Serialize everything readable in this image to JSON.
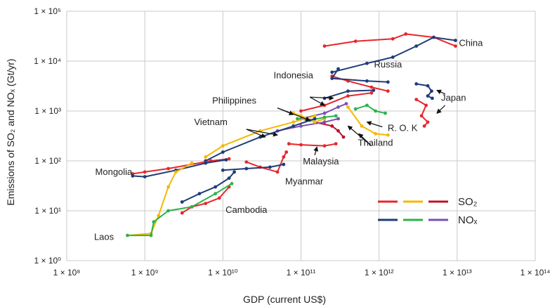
{
  "chart_data": {
    "type": "line",
    "xlabel": "GDP (current US$)",
    "ylabel": "Emissions of SO₂ and NOₓ (Gt/yr)",
    "xscale": "log",
    "yscale": "log",
    "xlim": [
      100000000,
      100000000000000
    ],
    "ylim": [
      1,
      100000
    ],
    "grid": true,
    "x_tick_labels": [
      "1 × 10⁸",
      "1 × 10⁹",
      "1 × 10¹⁰",
      "1 × 10¹¹",
      "1 × 10¹²",
      "1 × 10¹³",
      "1 × 10¹⁴"
    ],
    "y_tick_labels": [
      "1 × 10⁰",
      "1 × 10¹",
      "1 × 10²",
      "1 × 10³",
      "1 × 10⁴",
      "1 × 10⁵"
    ],
    "legend": {
      "placement": "bottom-right",
      "entries": [
        {
          "label": "SO₂",
          "colors": [
            "#e8262c",
            "#f5b800",
            "#c0122a"
          ]
        },
        {
          "label": "NOₓ",
          "colors": [
            "#1f3b78",
            "#2db34a",
            "#7d4fb5"
          ]
        }
      ]
    },
    "series": [
      {
        "country": "China",
        "pollutant": "SO2",
        "color": "#e8262c",
        "points": [
          [
            200000000000,
            20000
          ],
          [
            500000000000,
            25000
          ],
          [
            1500000000000,
            28000
          ],
          [
            2200000000000,
            35000
          ],
          [
            5000000000000,
            30000
          ],
          [
            9500000000000,
            20000
          ]
        ]
      },
      {
        "country": "China",
        "pollutant": "NOx",
        "color": "#1f3b78",
        "points": [
          [
            250000000000,
            6000
          ],
          [
            700000000000,
            9000
          ],
          [
            1500000000000,
            12000
          ],
          [
            3000000000000,
            20000
          ],
          [
            5000000000000,
            30000
          ],
          [
            9500000000000,
            26000
          ]
        ]
      },
      {
        "country": "Russia",
        "pollutant": "SO2",
        "color": "#e8262c",
        "points": [
          [
            250000000000,
            5000
          ],
          [
            400000000000,
            4000
          ],
          [
            800000000000,
            3000
          ],
          [
            1300000000000,
            2500
          ]
        ]
      },
      {
        "country": "Russia",
        "pollutant": "NOx",
        "color": "#1f3b78",
        "points": [
          [
            300000000000,
            7000
          ],
          [
            250000000000,
            4500
          ],
          [
            700000000000,
            4000
          ],
          [
            1300000000000,
            3800
          ]
        ]
      },
      {
        "country": "Japan",
        "pollutant": "SO2",
        "color": "#e8262c",
        "points": [
          [
            3000000000000,
            1700
          ],
          [
            4000000000000,
            1300
          ],
          [
            3500000000000,
            800
          ],
          [
            4200000000000,
            600
          ],
          [
            3800000000000,
            500
          ]
        ]
      },
      {
        "country": "Japan",
        "pollutant": "NOx",
        "color": "#1f3b78",
        "points": [
          [
            3000000000000,
            3500
          ],
          [
            4200000000000,
            3200
          ],
          [
            4700000000000,
            2500
          ],
          [
            4200000000000,
            2000
          ],
          [
            4800000000000,
            1800
          ]
        ]
      },
      {
        "country": "R. O. K",
        "pollutant": "SO2",
        "color": "#f5b800",
        "points": [
          [
            400000000000,
            1200
          ],
          [
            600000000000,
            500
          ],
          [
            900000000000,
            350
          ],
          [
            1300000000000,
            330
          ]
        ]
      },
      {
        "country": "R. O. K",
        "pollutant": "NOx",
        "color": "#2db34a",
        "points": [
          [
            500000000000,
            1100
          ],
          [
            700000000000,
            1300
          ],
          [
            900000000000,
            1000
          ],
          [
            1200000000000,
            900
          ]
        ]
      },
      {
        "country": "Indonesia",
        "pollutant": "SO2",
        "color": "#e8262c",
        "points": [
          [
            100000000000,
            1000
          ],
          [
            200000000000,
            1300
          ],
          [
            400000000000,
            2000
          ],
          [
            800000000000,
            2300
          ]
        ]
      },
      {
        "country": "Indonesia",
        "pollutant": "NOx",
        "color": "#1f3b78",
        "points": [
          [
            200000000000,
            1800
          ],
          [
            400000000000,
            2500
          ],
          [
            850000000000,
            2600
          ]
        ]
      },
      {
        "country": "Thailand",
        "pollutant": "SO2",
        "color": "#c0122a",
        "points": [
          [
            150000000000,
            600
          ],
          [
            250000000000,
            500
          ],
          [
            300000000000,
            400
          ],
          [
            350000000000,
            300
          ]
        ]
      },
      {
        "country": "Thailand",
        "pollutant": "NOx",
        "color": "#7d4fb5",
        "points": [
          [
            100000000000,
            700
          ],
          [
            200000000000,
            900
          ],
          [
            300000000000,
            1200
          ],
          [
            380000000000,
            1400
          ]
        ]
      },
      {
        "country": "Malaysia",
        "pollutant": "SO2",
        "color": "#e8262c",
        "points": [
          [
            70000000000,
            220
          ],
          [
            100000000000,
            210
          ],
          [
            200000000000,
            200
          ],
          [
            280000000000,
            220
          ]
        ]
      },
      {
        "country": "Malaysia",
        "pollutant": "NOx",
        "color": "#7d4fb5",
        "points": [
          [
            50000000000,
            400
          ],
          [
            100000000000,
            500
          ],
          [
            200000000000,
            600
          ],
          [
            300000000000,
            700
          ]
        ]
      },
      {
        "country": "Philippines",
        "pollutant": "SO2",
        "color": "#f5b800",
        "points": [
          [
            80000000000,
            900
          ],
          [
            100000000000,
            800
          ],
          [
            150000000000,
            600
          ],
          [
            200000000000,
            700
          ]
        ]
      },
      {
        "country": "Philippines",
        "pollutant": "NOx",
        "color": "#2db34a",
        "points": [
          [
            90000000000,
            700
          ],
          [
            130000000000,
            650
          ],
          [
            200000000000,
            750
          ],
          [
            280000000000,
            800
          ]
        ]
      },
      {
        "country": "Vietnam",
        "pollutant": "SO2",
        "color": "#f5b800",
        "points": [
          [
            6000000000,
            120
          ],
          [
            10000000000,
            200
          ],
          [
            30000000000,
            400
          ],
          [
            80000000000,
            600
          ],
          [
            150000000000,
            800
          ]
        ]
      },
      {
        "country": "Vietnam",
        "pollutant": "NOx",
        "color": "#1f3b78",
        "points": [
          [
            6000000000,
            100
          ],
          [
            10000000000,
            150
          ],
          [
            30000000000,
            300
          ],
          [
            80000000000,
            500
          ],
          [
            150000000000,
            700
          ]
        ]
      },
      {
        "country": "Mongolia",
        "pollutant": "SO2",
        "color": "#e8262c",
        "points": [
          [
            700000000,
            55
          ],
          [
            1000000000,
            60
          ],
          [
            2000000000,
            70
          ],
          [
            7000000000,
            100
          ],
          [
            12000000000,
            110
          ]
        ]
      },
      {
        "country": "Mongolia",
        "pollutant": "NOx",
        "color": "#1f3b78",
        "points": [
          [
            700000000,
            50
          ],
          [
            1000000000,
            48
          ],
          [
            2500000000,
            65
          ],
          [
            6000000000,
            90
          ],
          [
            11000000000,
            105
          ]
        ]
      },
      {
        "country": "Myanmar",
        "pollutant": "SO2",
        "color": "#e8262c",
        "points": [
          [
            20000000000,
            95
          ],
          [
            30000000000,
            75
          ],
          [
            50000000000,
            60
          ],
          [
            60000000000,
            120
          ],
          [
            65000000000,
            150
          ]
        ]
      },
      {
        "country": "Myanmar",
        "pollutant": "NOx",
        "color": "#1f3b78",
        "points": [
          [
            10000000000,
            65
          ],
          [
            20000000000,
            70
          ],
          [
            40000000000,
            75
          ],
          [
            60000000000,
            85
          ]
        ]
      },
      {
        "country": "Cambodia",
        "pollutant": "SO2",
        "color": "#e8262c",
        "points": [
          [
            3000000000,
            9
          ],
          [
            4000000000,
            12
          ],
          [
            6000000000,
            14
          ],
          [
            9000000000,
            18
          ],
          [
            12000000000,
            30
          ]
        ]
      },
      {
        "country": "Cambodia",
        "pollutant": "NOx",
        "color": "#1f3b78",
        "points": [
          [
            3000000000,
            15
          ],
          [
            5000000000,
            22
          ],
          [
            8000000000,
            30
          ],
          [
            12000000000,
            45
          ],
          [
            14000000000,
            60
          ]
        ]
      },
      {
        "country": "Laos",
        "pollutant": "SO2",
        "color": "#f5b800",
        "points": [
          [
            600000000,
            3.2
          ],
          [
            1200000000,
            3.5
          ],
          [
            1500000000,
            8
          ],
          [
            2000000000,
            30
          ],
          [
            2500000000,
            60
          ],
          [
            4000000000,
            90
          ]
        ]
      },
      {
        "country": "Laos",
        "pollutant": "NOx",
        "color": "#2db34a",
        "points": [
          [
            600000000,
            3.2
          ],
          [
            1200000000,
            3.2
          ],
          [
            1300000000,
            6
          ],
          [
            2000000000,
            10
          ],
          [
            4000000000,
            12
          ],
          [
            8000000000,
            22
          ],
          [
            13000000000,
            35
          ]
        ]
      }
    ],
    "annotations": [
      {
        "text": "China",
        "x": 15000000000000,
        "y": 20000
      },
      {
        "text": "Russia",
        "x": 1300000000000,
        "y": 7500
      },
      {
        "text": "Japan",
        "x": 9000000000000,
        "y": 1600
      },
      {
        "text": "Indonesia",
        "x": 80000000000,
        "y": 4500
      },
      {
        "text": "Philippines",
        "x": 14000000000,
        "y": 1400
      },
      {
        "text": "R. O. K",
        "x": 2000000000000,
        "y": 400
      },
      {
        "text": "Vietnam",
        "x": 7000000000,
        "y": 520
      },
      {
        "text": "Thailand",
        "x": 900000000000,
        "y": 200
      },
      {
        "text": "Malaysia",
        "x": 180000000000,
        "y": 85
      },
      {
        "text": "Mongolia",
        "x": 400000000,
        "y": 52
      },
      {
        "text": "Myanmar",
        "x": 110000000000,
        "y": 34
      },
      {
        "text": "Cambodia",
        "x": 20000000000,
        "y": 9
      },
      {
        "text": "Laos",
        "x": 300000000,
        "y": 2.6
      }
    ],
    "arrows": [
      {
        "from": [
          130000000000,
          1900
        ],
        "to": [
          200000000000,
          1300
        ]
      },
      {
        "from": [
          130000000000,
          1900
        ],
        "to": [
          260000000000,
          1800
        ]
      },
      {
        "from": [
          50000000000,
          1150
        ],
        "to": [
          80000000000,
          850
        ]
      },
      {
        "from": [
          50000000000,
          1150
        ],
        "to": [
          130000000000,
          650
        ]
      },
      {
        "from": [
          20000000000,
          430
        ],
        "to": [
          35000000000,
          300
        ]
      },
      {
        "from": [
          20000000000,
          430
        ],
        "to": [
          50000000000,
          330
        ]
      },
      {
        "from": [
          150000000000,
          130
        ],
        "to": [
          160000000000,
          190
        ]
      },
      {
        "from": [
          800000000000,
          200
        ],
        "to": [
          550000000000,
          350
        ]
      },
      {
        "from": [
          800000000000,
          200
        ],
        "to": [
          400000000000,
          500
        ]
      },
      {
        "from": [
          1100000000000,
          480
        ],
        "to": [
          700000000000,
          600
        ]
      },
      {
        "from": [
          7000000000000,
          2200
        ],
        "to": [
          5500000000000,
          2600
        ]
      },
      {
        "from": [
          7000000000000,
          1300
        ],
        "to": [
          5500000000000,
          900
        ]
      }
    ]
  }
}
